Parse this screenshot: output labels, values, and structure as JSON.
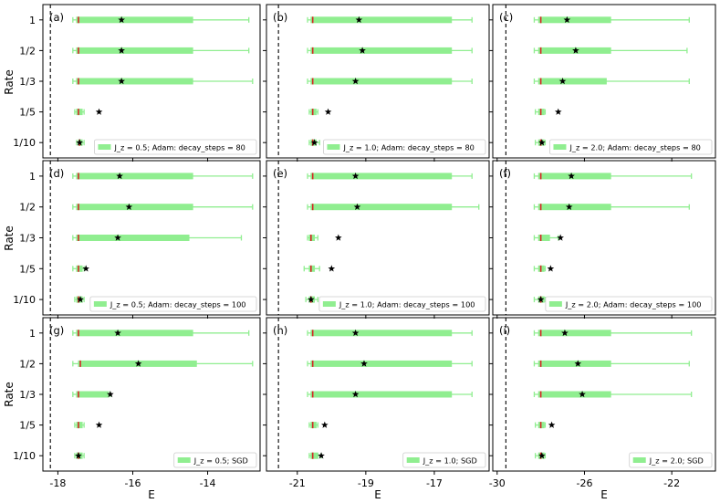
{
  "figure": {
    "y_axis_label": "Rate",
    "x_axis_label": "E",
    "colors": {
      "box": "#90ee90",
      "median": "#d62728",
      "mean_marker": "#000000",
      "axes": "#000000",
      "reference_line": "#000000"
    }
  },
  "chart_data": [
    {
      "panel": "(a)",
      "type": "box",
      "categories": [
        "1",
        "1/2",
        "1/3",
        "1/5",
        "1/10"
      ],
      "legend": "J_z = 0.5; Adam: decay_steps = 80",
      "xlim": [
        -18.4,
        -12.6
      ],
      "xticks": [
        -18,
        -16,
        -14
      ],
      "xtick_labels": [
        "-18",
        "-16",
        "-14"
      ],
      "reference_x": -18.2,
      "boxes": [
        {
          "category": "1",
          "whisker_low": -17.6,
          "q1": -17.5,
          "median": -17.45,
          "q3": -14.4,
          "whisker_high": -12.9,
          "mean": -16.3
        },
        {
          "category": "1/2",
          "whisker_low": -17.6,
          "q1": -17.5,
          "median": -17.45,
          "q3": -14.4,
          "whisker_high": -12.9,
          "mean": -16.3
        },
        {
          "category": "1/3",
          "whisker_low": -17.6,
          "q1": -17.5,
          "median": -17.45,
          "q3": -14.4,
          "whisker_high": -12.8,
          "mean": -16.3
        },
        {
          "category": "1/5",
          "whisker_low": -17.55,
          "q1": -17.5,
          "median": -17.45,
          "q3": -17.35,
          "whisker_high": -17.3,
          "mean": -16.9
        },
        {
          "category": "1/10",
          "whisker_low": -17.5,
          "q1": -17.45,
          "median": -17.42,
          "q3": -17.35,
          "whisker_high": -17.3,
          "mean": -17.42
        }
      ]
    },
    {
      "panel": "(b)",
      "type": "box",
      "categories": [
        "1",
        "1/2",
        "1/3",
        "1/5",
        "1/10"
      ],
      "legend": "J_z = 1.0; Adam: decay_steps = 80",
      "xlim": [
        -21.9,
        -15.4
      ],
      "xticks": [
        -21,
        -19,
        -17
      ],
      "xtick_labels": [
        "-21",
        "-19",
        "-17"
      ],
      "reference_x": -21.55,
      "boxes": [
        {
          "category": "1",
          "whisker_low": -20.7,
          "q1": -20.6,
          "median": -20.55,
          "q3": -16.5,
          "whisker_high": -15.9,
          "mean": -19.2
        },
        {
          "category": "1/2",
          "whisker_low": -20.7,
          "q1": -20.6,
          "median": -20.55,
          "q3": -16.5,
          "whisker_high": -15.9,
          "mean": -19.1
        },
        {
          "category": "1/3",
          "whisker_low": -20.7,
          "q1": -20.6,
          "median": -20.55,
          "q3": -16.5,
          "whisker_high": -15.9,
          "mean": -19.3
        },
        {
          "category": "1/5",
          "whisker_low": -20.65,
          "q1": -20.6,
          "median": -20.55,
          "q3": -20.45,
          "whisker_high": -20.4,
          "mean": -20.1
        },
        {
          "category": "1/10",
          "whisker_low": -20.65,
          "q1": -20.6,
          "median": -20.55,
          "q3": -20.45,
          "whisker_high": -20.35,
          "mean": -20.5
        }
      ]
    },
    {
      "panel": "(c)",
      "type": "box",
      "categories": [
        "1",
        "1/2",
        "1/3",
        "1/5",
        "1/10"
      ],
      "legend": "J_z = 2.0; Adam: decay_steps = 80",
      "xlim": [
        -30.2,
        -20.0
      ],
      "xticks": [
        -30,
        -26,
        -22
      ],
      "xtick_labels": [
        "-30",
        "-26",
        "-22"
      ],
      "reference_x": -29.6,
      "boxes": [
        {
          "category": "1",
          "whisker_low": -28.3,
          "q1": -28.1,
          "median": -28.0,
          "q3": -24.8,
          "whisker_high": -21.2,
          "mean": -26.8
        },
        {
          "category": "1/2",
          "whisker_low": -28.3,
          "q1": -28.1,
          "median": -28.0,
          "q3": -24.8,
          "whisker_high": -21.3,
          "mean": -26.4
        },
        {
          "category": "1/3",
          "whisker_low": -28.3,
          "q1": -28.1,
          "median": -28.0,
          "q3": -25.0,
          "whisker_high": -21.2,
          "mean": -27.0
        },
        {
          "category": "1/5",
          "whisker_low": -28.25,
          "q1": -28.1,
          "median": -28.0,
          "q3": -27.85,
          "whisker_high": -27.8,
          "mean": -27.2
        },
        {
          "category": "1/10",
          "whisker_low": -28.25,
          "q1": -28.1,
          "median": -28.0,
          "q3": -27.85,
          "whisker_high": -27.8,
          "mean": -27.95
        }
      ]
    },
    {
      "panel": "(d)",
      "type": "box",
      "categories": [
        "1",
        "1/2",
        "1/3",
        "1/5",
        "1/10"
      ],
      "legend": "J_z = 0.5; Adam: decay_steps = 100",
      "xlim": [
        -18.4,
        -12.6
      ],
      "xticks": [
        -18,
        -16,
        -14
      ],
      "xtick_labels": [
        "-18",
        "-16",
        "-14"
      ],
      "reference_x": -18.2,
      "boxes": [
        {
          "category": "1",
          "whisker_low": -17.6,
          "q1": -17.5,
          "median": -17.45,
          "q3": -14.4,
          "whisker_high": -12.8,
          "mean": -16.35
        },
        {
          "category": "1/2",
          "whisker_low": -17.6,
          "q1": -17.5,
          "median": -17.45,
          "q3": -14.4,
          "whisker_high": -12.8,
          "mean": -16.1
        },
        {
          "category": "1/3",
          "whisker_low": -17.6,
          "q1": -17.5,
          "median": -17.45,
          "q3": -14.5,
          "whisker_high": -13.1,
          "mean": -16.4
        },
        {
          "category": "1/5",
          "whisker_low": -17.6,
          "q1": -17.5,
          "median": -17.45,
          "q3": -17.35,
          "whisker_high": -17.3,
          "mean": -17.25
        },
        {
          "category": "1/10",
          "whisker_low": -17.55,
          "q1": -17.5,
          "median": -17.45,
          "q3": -17.35,
          "whisker_high": -17.3,
          "mean": -17.4
        }
      ]
    },
    {
      "panel": "(e)",
      "type": "box",
      "categories": [
        "1",
        "1/2",
        "1/3",
        "1/5",
        "1/10"
      ],
      "legend": "J_z = 1.0; Adam: decay_steps = 100",
      "xlim": [
        -21.9,
        -15.4
      ],
      "xticks": [
        -21,
        -19,
        -17
      ],
      "xtick_labels": [
        "-21",
        "-19",
        "-17"
      ],
      "reference_x": -21.55,
      "boxes": [
        {
          "category": "1",
          "whisker_low": -20.7,
          "q1": -20.6,
          "median": -20.55,
          "q3": -16.5,
          "whisker_high": -15.9,
          "mean": -19.3
        },
        {
          "category": "1/2",
          "whisker_low": -20.7,
          "q1": -20.6,
          "median": -20.55,
          "q3": -16.5,
          "whisker_high": -15.7,
          "mean": -19.25
        },
        {
          "category": "1/3",
          "whisker_low": -20.7,
          "q1": -20.65,
          "median": -20.6,
          "q3": -20.5,
          "whisker_high": -20.4,
          "mean": -19.8
        },
        {
          "category": "1/5",
          "whisker_low": -20.8,
          "q1": -20.65,
          "median": -20.6,
          "q3": -20.5,
          "whisker_high": -20.35,
          "mean": -20.0
        },
        {
          "category": "1/10",
          "whisker_low": -20.75,
          "q1": -20.65,
          "median": -20.6,
          "q3": -20.5,
          "whisker_high": -20.4,
          "mean": -20.6
        }
      ]
    },
    {
      "panel": "(f)",
      "type": "box",
      "categories": [
        "1",
        "1/2",
        "1/3",
        "1/5",
        "1/10"
      ],
      "legend": "J_z = 2.0; Adam: decay_steps = 100",
      "xlim": [
        -30.2,
        -20.0
      ],
      "xticks": [
        -30,
        -26,
        -22
      ],
      "xtick_labels": [
        "-30",
        "-26",
        "-22"
      ],
      "reference_x": -29.6,
      "boxes": [
        {
          "category": "1",
          "whisker_low": -28.3,
          "q1": -28.1,
          "median": -28.0,
          "q3": -24.8,
          "whisker_high": -21.1,
          "mean": -26.6
        },
        {
          "category": "1/2",
          "whisker_low": -28.3,
          "q1": -28.1,
          "median": -28.0,
          "q3": -24.8,
          "whisker_high": -21.2,
          "mean": -26.7
        },
        {
          "category": "1/3",
          "whisker_low": -28.3,
          "q1": -28.1,
          "median": -28.0,
          "q3": -27.6,
          "whisker_high": -27.2,
          "mean": -27.1
        },
        {
          "category": "1/5",
          "whisker_low": -28.3,
          "q1": -28.1,
          "median": -28.0,
          "q3": -27.85,
          "whisker_high": -27.8,
          "mean": -27.55
        },
        {
          "category": "1/10",
          "whisker_low": -28.3,
          "q1": -28.1,
          "median": -28.0,
          "q3": -27.85,
          "whisker_high": -27.8,
          "mean": -28.0
        }
      ]
    },
    {
      "panel": "(g)",
      "type": "box",
      "categories": [
        "1",
        "1/2",
        "1/3",
        "1/5",
        "1/10"
      ],
      "legend": "J_z = 0.5; SGD",
      "xlim": [
        -18.4,
        -12.6
      ],
      "xticks": [
        -18,
        -16,
        -14
      ],
      "xtick_labels": [
        "-18",
        "-16",
        "-14"
      ],
      "reference_x": -18.2,
      "boxes": [
        {
          "category": "1",
          "whisker_low": -17.6,
          "q1": -17.5,
          "median": -17.45,
          "q3": -14.4,
          "whisker_high": -12.9,
          "mean": -16.4
        },
        {
          "category": "1/2",
          "whisker_low": -17.6,
          "q1": -17.45,
          "median": -17.4,
          "q3": -14.3,
          "whisker_high": -12.8,
          "mean": -15.85
        },
        {
          "category": "1/3",
          "whisker_low": -17.6,
          "q1": -17.5,
          "median": -17.45,
          "q3": -16.65,
          "whisker_high": -16.6,
          "mean": -16.6
        },
        {
          "category": "1/5",
          "whisker_low": -17.55,
          "q1": -17.5,
          "median": -17.45,
          "q3": -17.35,
          "whisker_high": -17.3,
          "mean": -16.9
        },
        {
          "category": "1/10",
          "whisker_low": -17.55,
          "q1": -17.5,
          "median": -17.45,
          "q3": -17.35,
          "whisker_high": -17.3,
          "mean": -17.45
        }
      ]
    },
    {
      "panel": "(h)",
      "type": "box",
      "categories": [
        "1",
        "1/2",
        "1/3",
        "1/5",
        "1/10"
      ],
      "legend": "J_z = 1.0; SGD",
      "xlim": [
        -21.9,
        -15.4
      ],
      "xticks": [
        -21,
        -19,
        -17
      ],
      "xtick_labels": [
        "-21",
        "-19",
        "-17"
      ],
      "reference_x": -21.55,
      "boxes": [
        {
          "category": "1",
          "whisker_low": -20.7,
          "q1": -20.6,
          "median": -20.55,
          "q3": -16.5,
          "whisker_high": -15.9,
          "mean": -19.3
        },
        {
          "category": "1/2",
          "whisker_low": -20.7,
          "q1": -20.6,
          "median": -20.55,
          "q3": -16.5,
          "whisker_high": -15.9,
          "mean": -19.05
        },
        {
          "category": "1/3",
          "whisker_low": -20.7,
          "q1": -20.6,
          "median": -20.55,
          "q3": -16.5,
          "whisker_high": -15.9,
          "mean": -19.3
        },
        {
          "category": "1/5",
          "whisker_low": -20.65,
          "q1": -20.6,
          "median": -20.55,
          "q3": -20.45,
          "whisker_high": -20.4,
          "mean": -20.2
        },
        {
          "category": "1/10",
          "whisker_low": -20.65,
          "q1": -20.6,
          "median": -20.55,
          "q3": -20.4,
          "whisker_high": -20.3,
          "mean": -20.3
        }
      ]
    },
    {
      "panel": "(i)",
      "type": "box",
      "categories": [
        "1",
        "1/2",
        "1/3",
        "1/5",
        "1/10"
      ],
      "legend": "J_z = 2.0; SGD",
      "xlim": [
        -30.2,
        -20.0
      ],
      "xticks": [
        -30,
        -26,
        -22
      ],
      "xtick_labels": [
        "-30",
        "-26",
        "-22"
      ],
      "reference_x": -29.6,
      "boxes": [
        {
          "category": "1",
          "whisker_low": -28.3,
          "q1": -28.1,
          "median": -28.0,
          "q3": -24.8,
          "whisker_high": -21.1,
          "mean": -26.9
        },
        {
          "category": "1/2",
          "whisker_low": -28.3,
          "q1": -28.1,
          "median": -28.0,
          "q3": -24.8,
          "whisker_high": -21.2,
          "mean": -26.3
        },
        {
          "category": "1/3",
          "whisker_low": -28.3,
          "q1": -28.1,
          "median": -28.0,
          "q3": -24.8,
          "whisker_high": -21.1,
          "mean": -26.1
        },
        {
          "category": "1/5",
          "whisker_low": -28.25,
          "q1": -28.1,
          "median": -28.0,
          "q3": -27.85,
          "whisker_high": -27.8,
          "mean": -27.5
        },
        {
          "category": "1/10",
          "whisker_low": -28.25,
          "q1": -28.1,
          "median": -28.0,
          "q3": -27.85,
          "whisker_high": -27.8,
          "mean": -27.95
        }
      ]
    }
  ]
}
